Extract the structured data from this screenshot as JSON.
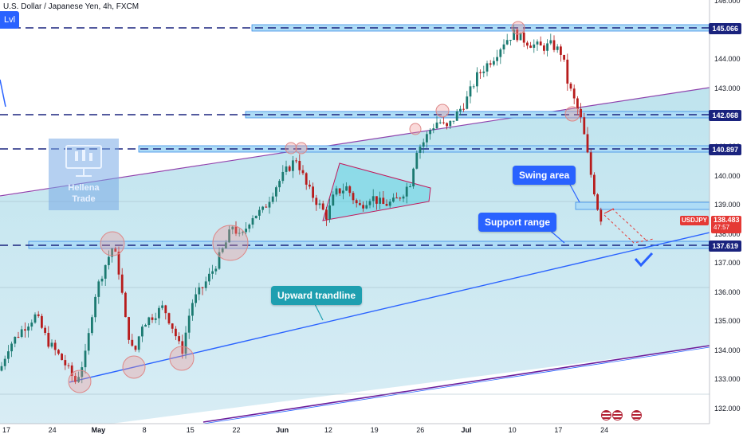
{
  "header": {
    "symbol_title": "U.S. Dollar / Japanese Yen, 4h, FXCM",
    "lvl_label": "Lvl"
  },
  "watermark": {
    "line1": "Hellena",
    "line2": "Trade"
  },
  "annotations": {
    "swing_area": "Swing area",
    "support_range": "Support range",
    "upward_trendline": "Upward trandline"
  },
  "price_tags": {
    "symbol": "USDJPY",
    "current": "138.483",
    "countdown": "47:57",
    "lev_145": "145.066",
    "lev_142": "142.068",
    "lev_140": "140.897",
    "lev_137": "137.619"
  },
  "colors": {
    "background_channel": "#cde9f2",
    "accent_blue": "#2962ff",
    "dash_navy": "#1a237e",
    "channel_line": "#8e44ad",
    "bull": "#26a69a",
    "bear": "#ef5350",
    "price_red": "#e53935"
  },
  "icons": [
    "check-mark-icon",
    "us-flag-icon"
  ],
  "chart_data": {
    "type": "candlestick",
    "title": "U.S. Dollar / Japanese Yen, 4h, FXCM",
    "ylim": [
      131.7,
      146.2
    ],
    "y_ticks": [
      "132.000",
      "133.000",
      "134.000",
      "135.000",
      "136.000",
      "137.000",
      "138.000",
      "139.000",
      "140.000",
      "141.000",
      "142.000",
      "143.000",
      "144.000",
      "145.000",
      "146.000"
    ],
    "x_ticks": [
      "17",
      "24",
      "May",
      "8",
      "15",
      "22",
      "Jun",
      "12",
      "19",
      "26",
      "Jul",
      "10",
      "17",
      "24"
    ],
    "horizontal_levels": [
      145.066,
      142.068,
      140.897,
      137.619
    ],
    "current_price": 138.483,
    "price_path": [
      [
        0,
        133.3
      ],
      [
        10,
        134.1
      ],
      [
        30,
        134.8
      ],
      [
        45,
        135.2
      ],
      [
        60,
        134.3
      ],
      [
        80,
        133.6
      ],
      [
        95,
        132.9
      ],
      [
        108,
        133.9
      ],
      [
        118,
        135.8
      ],
      [
        130,
        136.8
      ],
      [
        142,
        137.6
      ],
      [
        150,
        136.6
      ],
      [
        158,
        134.9
      ],
      [
        168,
        133.8
      ],
      [
        178,
        134.9
      ],
      [
        192,
        135.2
      ],
      [
        205,
        135.5
      ],
      [
        218,
        134.7
      ],
      [
        228,
        133.9
      ],
      [
        240,
        135.6
      ],
      [
        255,
        136.2
      ],
      [
        268,
        136.8
      ],
      [
        282,
        137.6
      ],
      [
        292,
        138.3
      ],
      [
        302,
        137.8
      ],
      [
        315,
        138.6
      ],
      [
        330,
        138.8
      ],
      [
        345,
        139.6
      ],
      [
        360,
        140.2
      ],
      [
        372,
        140.6
      ],
      [
        385,
        139.6
      ],
      [
        400,
        139.0
      ],
      [
        410,
        138.6
      ],
      [
        420,
        139.4
      ],
      [
        435,
        139.6
      ],
      [
        450,
        138.9
      ],
      [
        465,
        139.3
      ],
      [
        480,
        139.0
      ],
      [
        495,
        139.1
      ],
      [
        505,
        139.4
      ],
      [
        515,
        139.8
      ],
      [
        522,
        140.9
      ],
      [
        530,
        141.1
      ],
      [
        540,
        141.6
      ],
      [
        550,
        141.9
      ],
      [
        560,
        141.6
      ],
      [
        570,
        142.0
      ],
      [
        585,
        142.6
      ],
      [
        598,
        143.4
      ],
      [
        610,
        143.8
      ],
      [
        620,
        144.1
      ],
      [
        632,
        144.6
      ],
      [
        645,
        144.9
      ],
      [
        655,
        144.7
      ],
      [
        668,
        144.5
      ],
      [
        680,
        144.4
      ],
      [
        692,
        144.5
      ],
      [
        705,
        144.2
      ],
      [
        712,
        143.2
      ],
      [
        720,
        142.6
      ],
      [
        728,
        142.0
      ],
      [
        734,
        141.2
      ],
      [
        740,
        140.2
      ],
      [
        746,
        139.4
      ],
      [
        752,
        138.6
      ],
      [
        758,
        138.4
      ]
    ],
    "projection": "decline toward the upward trendline near 137.5, then rebound"
  }
}
